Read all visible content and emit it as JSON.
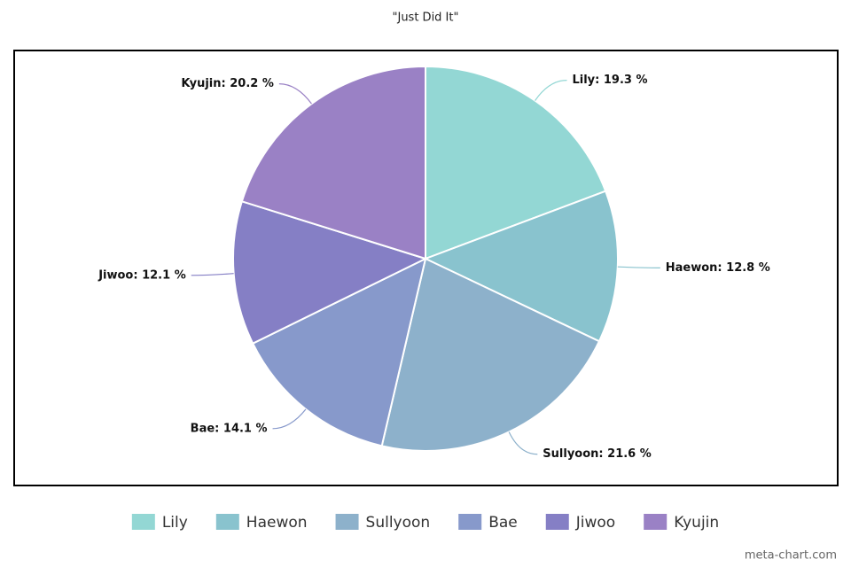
{
  "chart_data": {
    "type": "pie",
    "title": "\"Just Did It\"",
    "categories": [
      "Lily",
      "Haewon",
      "Sullyoon",
      "Bae",
      "Jiwoo",
      "Kyujin"
    ],
    "values": [
      19.3,
      12.8,
      21.6,
      14.1,
      12.1,
      20.2
    ],
    "value_labels": [
      "Lily: 19.3 %",
      "Haewon: 12.8 %",
      "Sullyoon: 21.6 %",
      "Bae: 14.1 %",
      "Jiwoo: 12.1 %",
      "Kyujin: 20.2 %"
    ],
    "colors": [
      "#93d7d4",
      "#89c3ce",
      "#8db1cb",
      "#8799cb",
      "#857fc5",
      "#9a81c5"
    ],
    "watermark": "meta-chart.com"
  }
}
